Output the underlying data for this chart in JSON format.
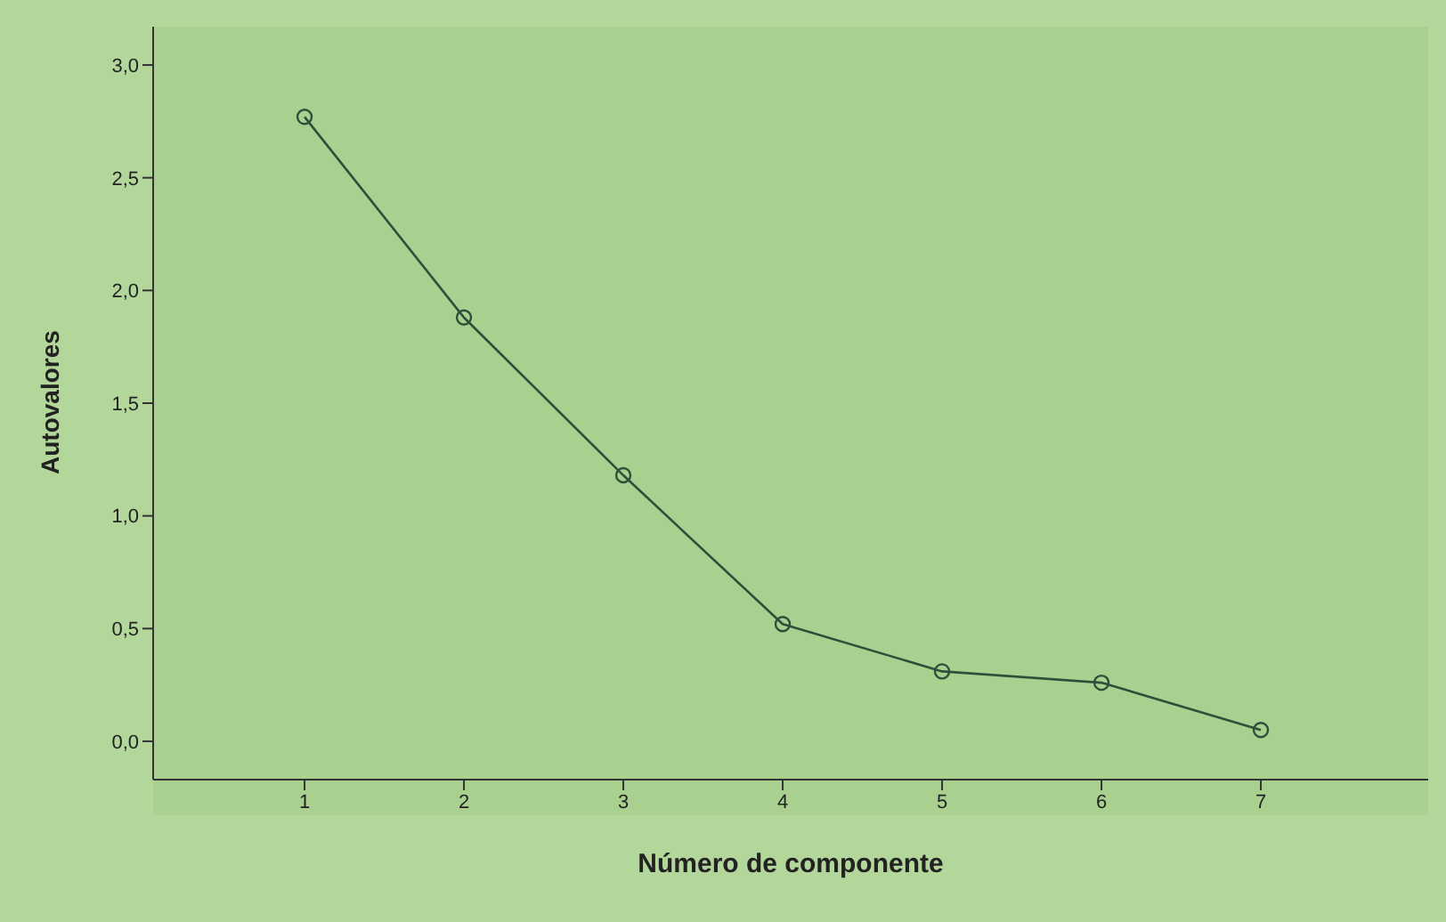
{
  "chart_data": {
    "type": "line",
    "xlabel": "Número de componente",
    "ylabel": "Autovalores",
    "x": [
      1,
      2,
      3,
      4,
      5,
      6,
      7
    ],
    "series": [
      {
        "color": "#2f4f3a",
        "values": [
          2.77,
          1.88,
          1.18,
          0.52,
          0.31,
          0.26,
          0.05
        ]
      }
    ],
    "xlim": [
      0.05,
      8.05
    ],
    "xticks": [
      1,
      2,
      3,
      4,
      5,
      6,
      7
    ],
    "ylim": [
      -0.17,
      3.17
    ],
    "yticks": [
      {
        "value": 0,
        "label": "0,0"
      },
      {
        "value": 0.5,
        "label": "0,5"
      },
      {
        "value": 1,
        "label": "1,0"
      },
      {
        "value": 1.5,
        "label": "1,5"
      },
      {
        "value": 2,
        "label": "2,0"
      },
      {
        "value": 2.5,
        "label": "2,5"
      },
      {
        "value": 3,
        "label": "3,0"
      }
    ],
    "marker": "circle",
    "line_style": "solid",
    "grid": false,
    "legend": false
  }
}
